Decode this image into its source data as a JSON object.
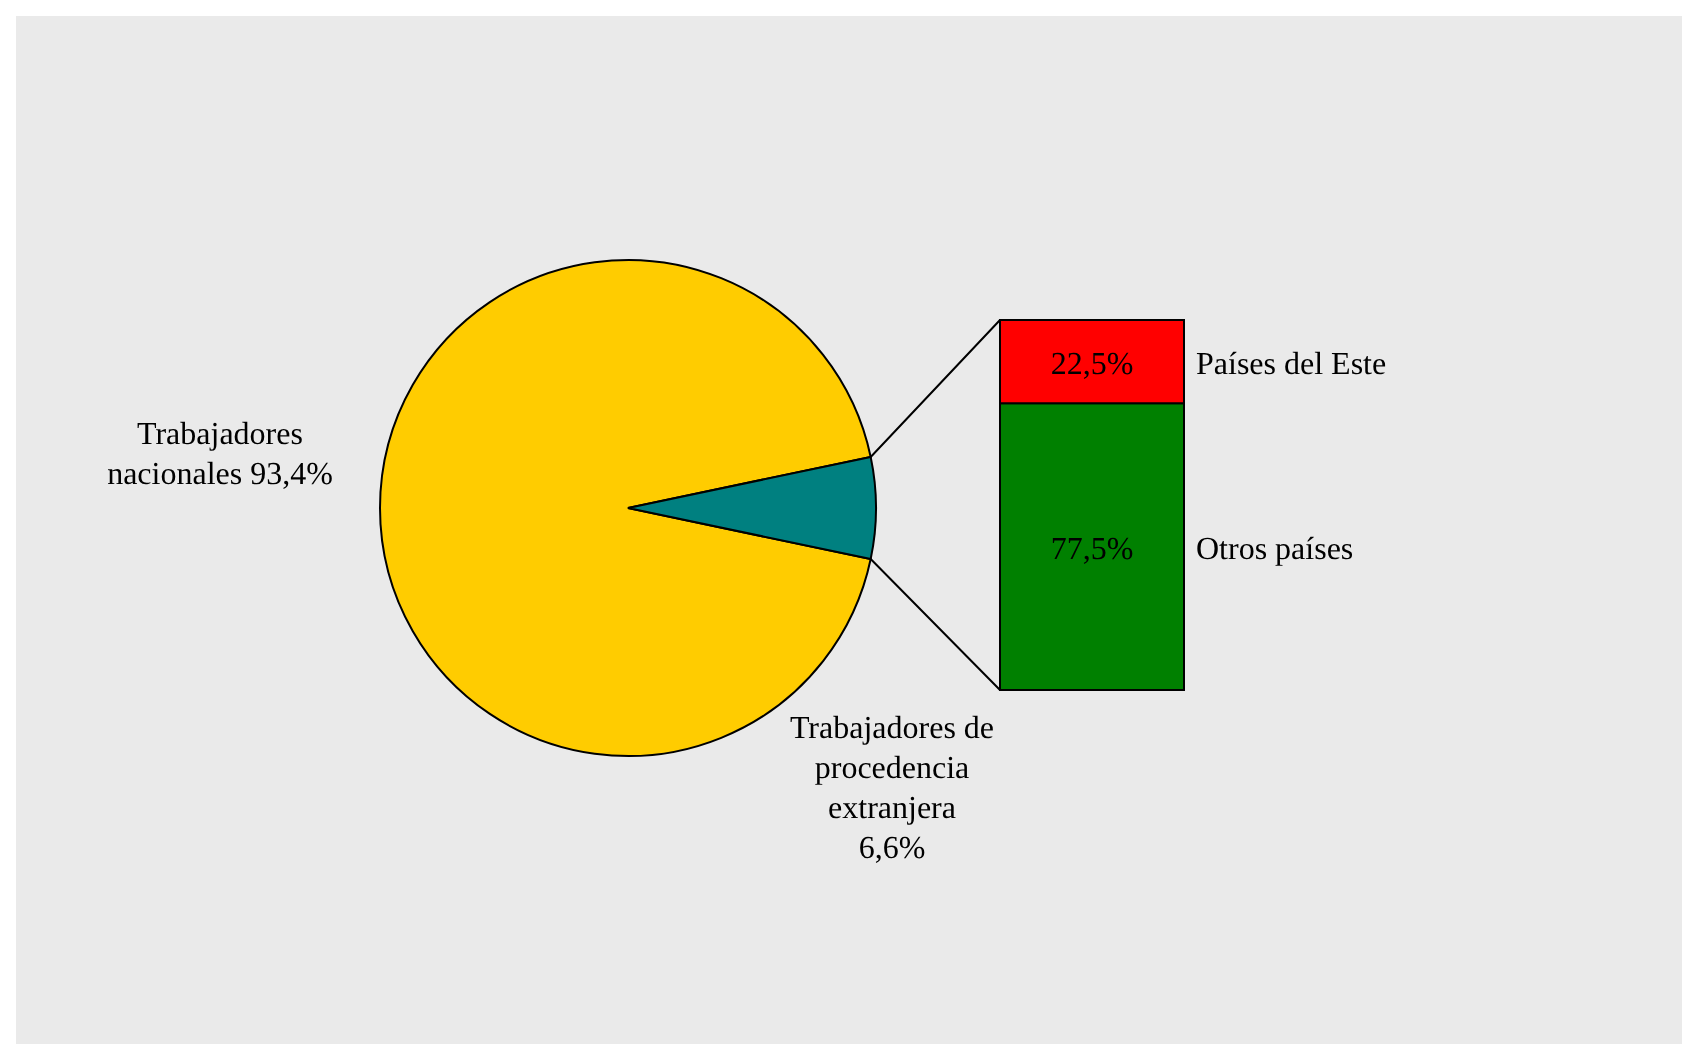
{
  "chart_data": [
    {
      "type": "pie",
      "categories": [
        "Trabajadores nacionales",
        "Trabajadores de procedencia extranjera"
      ],
      "values": [
        93.4,
        6.6
      ],
      "colors": [
        "#ffcc00",
        "#008080"
      ],
      "value_labels": [
        "93,4%",
        "6,6%"
      ]
    },
    {
      "type": "bar",
      "stacked": true,
      "categories": [
        null
      ],
      "series": [
        {
          "name": "Otros países",
          "color": "#008000",
          "values": [
            77.5
          ],
          "value_labels": [
            "77,5%"
          ]
        },
        {
          "name": "Países del Este",
          "color": "#ff0000",
          "values": [
            22.5
          ],
          "value_labels": [
            "22,5%"
          ]
        }
      ]
    }
  ]
}
